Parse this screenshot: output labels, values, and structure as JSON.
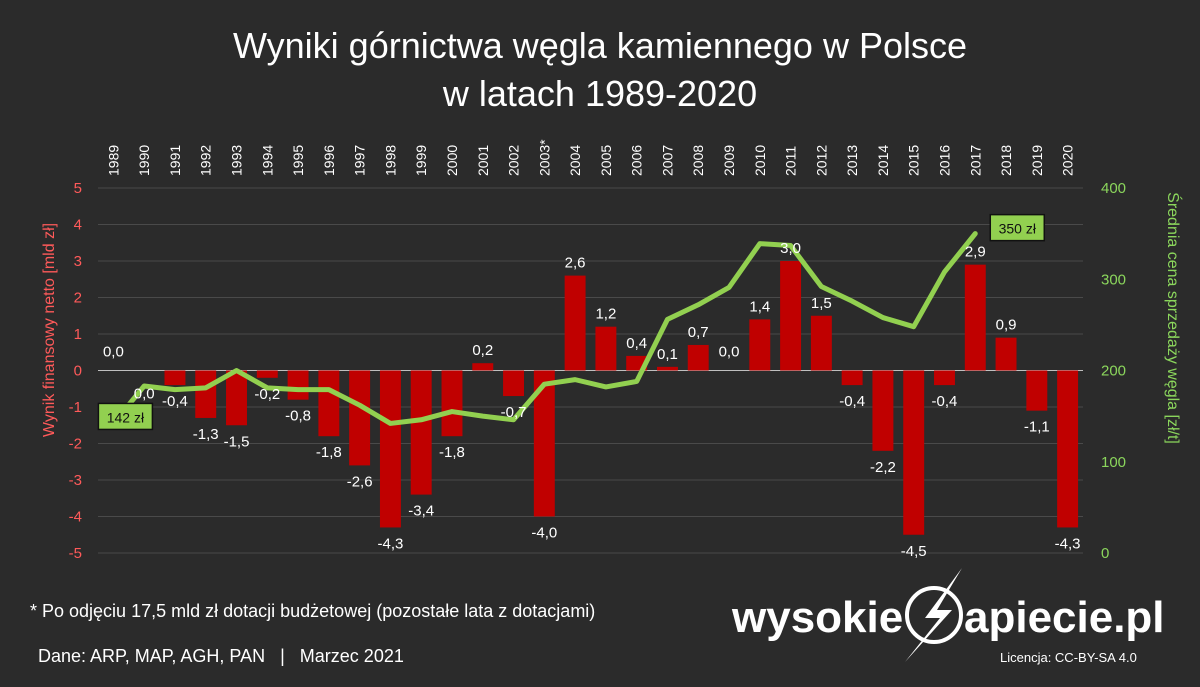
{
  "title_lines": [
    "Wyniki górnictwa węgla kamiennego w Polsce",
    "w latach 1989-2020"
  ],
  "chart_data": {
    "type": "bar",
    "categories": [
      "1989",
      "1990",
      "1991",
      "1992",
      "1993",
      "1994",
      "1995",
      "1996",
      "1997",
      "1998",
      "1999",
      "2000",
      "2001",
      "2002",
      "2003*",
      "2004",
      "2005",
      "2006",
      "2007",
      "2008",
      "2009",
      "2010",
      "2011",
      "2012",
      "2013",
      "2014",
      "2015",
      "2016",
      "2017",
      "2018",
      "2019",
      "2020"
    ],
    "series": [
      {
        "name": "Wynik finansowy netto [mld zł]",
        "type": "bar",
        "axis": "left",
        "color": "#c00000",
        "values": [
          0.0,
          0.0,
          -0.4,
          -1.3,
          -1.5,
          -0.2,
          -0.8,
          -1.8,
          -2.6,
          -4.3,
          -3.4,
          -1.8,
          0.2,
          -0.7,
          -4.0,
          2.6,
          1.2,
          0.4,
          0.1,
          0.7,
          0.0,
          1.4,
          3.0,
          1.5,
          -0.4,
          -2.2,
          -4.5,
          -0.4,
          2.9,
          0.9,
          -1.1,
          -4.3
        ],
        "labels": [
          "0,0",
          "0,0",
          "-0,4",
          "-1,3",
          "-1,5",
          "-0,2",
          "-0,8",
          "-1,8",
          "-2,6",
          "-4,3",
          "-3,4",
          "-1,8",
          "0,2",
          "-0,7",
          "-4,0",
          "2,6",
          "1,2",
          "0,4",
          "0,1",
          "0,7",
          "0,0",
          "1,4",
          "3,0",
          "1,5",
          "-0,4",
          "-2,2",
          "-4,5",
          "-0,4",
          "2,9",
          "0,9",
          "-1,1",
          "-4,3"
        ]
      },
      {
        "name": "Średnia cena sprzedaży węgla [zł/t]",
        "type": "line",
        "axis": "right",
        "color": "#92d050",
        "values": [
          142,
          183,
          179,
          181,
          200,
          181,
          179,
          179,
          162,
          142,
          146,
          155,
          150,
          146,
          185,
          190,
          182,
          188,
          256,
          272,
          291,
          339,
          337,
          292,
          276,
          258,
          248,
          308,
          350,
          null,
          null,
          null
        ]
      }
    ],
    "callouts": [
      {
        "category": "1989",
        "text": "142 zł"
      },
      {
        "category": "2017",
        "text": "350 zł"
      }
    ],
    "ylabel_left": "Wynik finansowy netto [mld zł]",
    "ylabel_right": "Średnia cena sprzedaży węgla [zł/t]",
    "ylim_left": [
      -5,
      5
    ],
    "ylim_right": [
      0,
      400
    ],
    "yticks_left": [
      5,
      4,
      3,
      2,
      1,
      0,
      -1,
      -2,
      -3,
      -4,
      -5
    ],
    "yticks_left_labels": [
      "5",
      "4",
      "3",
      "2",
      "1",
      "0",
      "-1",
      "-2",
      "-3",
      "-4",
      "-5"
    ],
    "yticks_right": [
      400,
      300,
      200,
      100,
      0
    ],
    "yticks_right_labels": [
      "400",
      "300",
      "200",
      "100",
      "0"
    ],
    "grid": true
  },
  "footnote": "* Po odjęciu 17,5 mld zł dotacji budżetowej (pozostałe lata z dotacjami)",
  "source": "Dane: ARP, MAP, AGH, PAN   |   Marzec 2021",
  "logo": {
    "left": "wysokie",
    "right": "apiecie.pl",
    "icon": "lightning-bolt-icon"
  },
  "license": "Licencja: CC-BY-SA 4.0",
  "colors": {
    "background": "#2b2b2b",
    "bar": "#c00000",
    "line": "#92d050",
    "left_axis": "#ff5a5a",
    "right_axis": "#8bd65c"
  }
}
